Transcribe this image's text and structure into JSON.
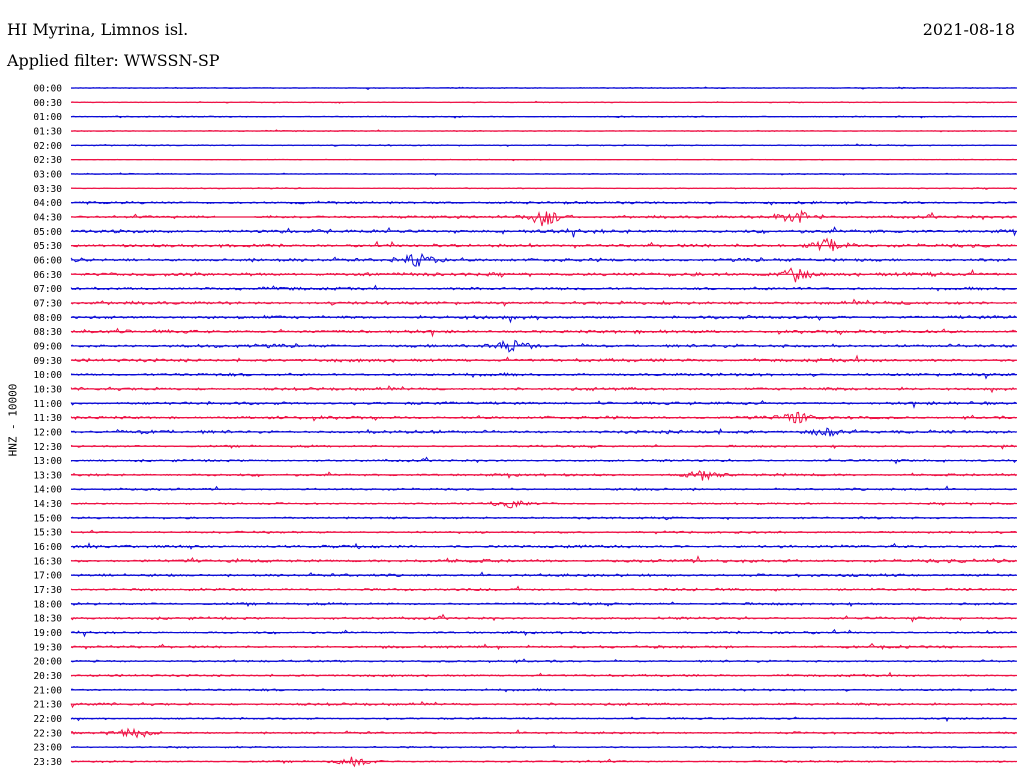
{
  "header": {
    "station": "HI Myrina, Limnos isl.",
    "date": "2021-08-18",
    "filter": "Applied filter: WWSSN-SP"
  },
  "y_axis_label": "HNZ - 10000",
  "colors": {
    "even_trace": "#0b0bd6",
    "odd_trace": "#ee1144",
    "background": "#ffffff"
  },
  "chart_data": {
    "type": "line",
    "title": "HI Myrina, Limnos isl.",
    "subtitle": "Applied filter: WWSSN-SP",
    "ylabel": "HNZ - 10000",
    "rows": [
      "00:00",
      "00:30",
      "01:00",
      "01:30",
      "02:00",
      "02:30",
      "03:00",
      "03:30",
      "04:00",
      "04:30",
      "05:00",
      "05:30",
      "06:00",
      "06:30",
      "07:00",
      "07:30",
      "08:00",
      "08:30",
      "09:00",
      "09:30",
      "10:00",
      "10:30",
      "11:00",
      "11:30",
      "12:00",
      "12:30",
      "13:00",
      "13:30",
      "14:00",
      "14:30",
      "15:00",
      "15:30",
      "16:00",
      "16:30",
      "17:00",
      "17:30",
      "18:00",
      "18:30",
      "19:00",
      "19:30",
      "20:00",
      "20:30",
      "21:00",
      "21:30",
      "22:00",
      "22:30",
      "23:00",
      "23:30"
    ],
    "row_amplitudes": [
      0.3,
      0.25,
      0.35,
      0.3,
      0.35,
      0.2,
      0.3,
      0.3,
      0.7,
      0.8,
      1.0,
      0.9,
      0.9,
      1.0,
      0.8,
      0.9,
      0.9,
      0.9,
      0.9,
      0.9,
      0.8,
      0.8,
      0.8,
      0.8,
      0.9,
      0.6,
      0.6,
      0.7,
      0.6,
      0.5,
      0.6,
      0.6,
      0.8,
      0.9,
      0.8,
      0.7,
      0.7,
      0.7,
      0.6,
      0.7,
      0.6,
      0.6,
      0.6,
      0.7,
      0.5,
      0.6,
      0.5,
      0.5
    ],
    "events": [
      {
        "row": "04:30",
        "minute": 15,
        "size": 3.0
      },
      {
        "row": "04:30",
        "minute": 23,
        "size": 3.2
      },
      {
        "row": "05:30",
        "minute": 24,
        "size": 2.8
      },
      {
        "row": "06:00",
        "minute": 11,
        "size": 2.6
      },
      {
        "row": "06:30",
        "minute": 23,
        "size": 2.5
      },
      {
        "row": "09:00",
        "minute": 14,
        "size": 2.0
      },
      {
        "row": "11:30",
        "minute": 23,
        "size": 2.2
      },
      {
        "row": "12:00",
        "minute": 24,
        "size": 2.0
      },
      {
        "row": "22:30",
        "minute": 2,
        "size": 2.0
      },
      {
        "row": "23:30",
        "minute": 9,
        "size": 1.6
      },
      {
        "row": "13:30",
        "minute": 20,
        "size": 1.6
      },
      {
        "row": "14:30",
        "minute": 14,
        "size": 1.6
      }
    ],
    "gaps": [
      {
        "row": "04:30",
        "from_minute": 4.6,
        "to_minute": 5.8
      }
    ]
  }
}
